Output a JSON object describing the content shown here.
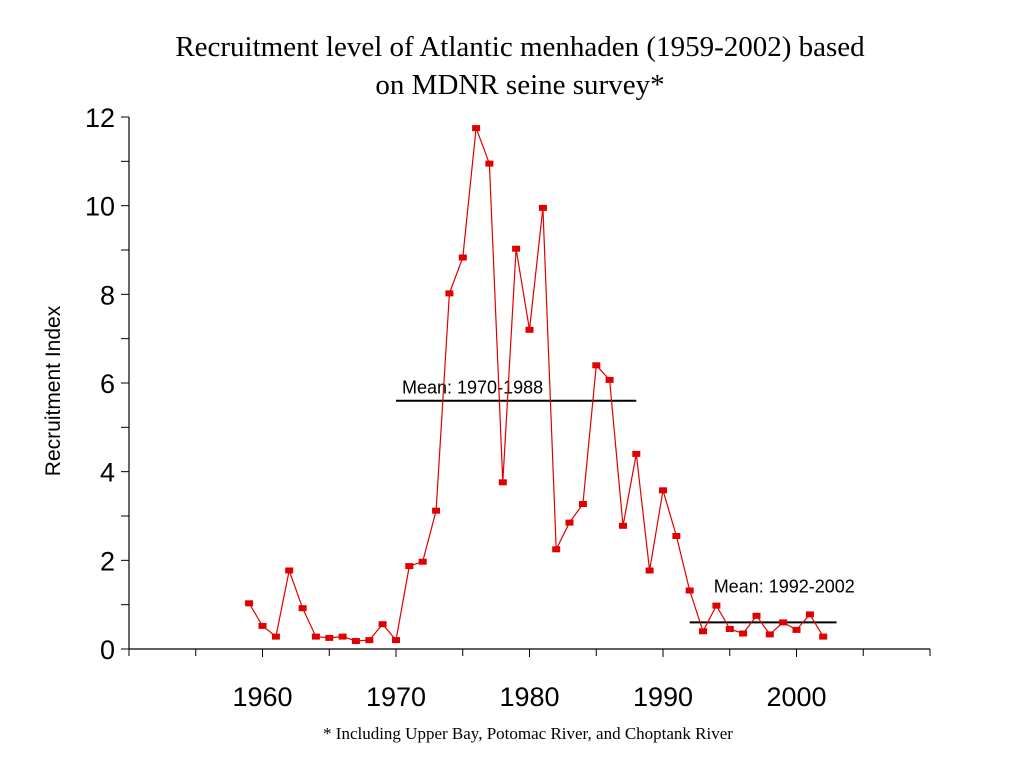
{
  "chart_data": {
    "type": "line",
    "title_line1": "Recruitment level of Atlantic menhaden (1959-2002) based",
    "title_line2": "on MDNR seine survey*",
    "xlabel": "",
    "ylabel": "Recruitment Index",
    "footnote": "* Including Upper Bay, Potomac River, and Choptank River",
    "xlim": [
      1950,
      2010
    ],
    "ylim": [
      0,
      12
    ],
    "x_ticks": [
      1960,
      1970,
      1980,
      1990,
      2000
    ],
    "y_ticks": [
      0,
      2,
      4,
      6,
      8,
      10,
      12
    ],
    "grid": false,
    "series_color": "#e00000",
    "series": [
      {
        "x": [
          1959,
          1960,
          1961,
          1962,
          1963,
          1964,
          1965,
          1966,
          1967,
          1968,
          1969,
          1970,
          1971,
          1972,
          1973,
          1974,
          1975,
          1976,
          1977,
          1978,
          1979,
          1980,
          1981,
          1982,
          1983,
          1984,
          1985,
          1986,
          1987,
          1988,
          1989,
          1990,
          1991,
          1992,
          1993,
          1994,
          1995,
          1996,
          1997,
          1998,
          1999,
          2000,
          2001,
          2002
        ],
        "values": [
          1.03,
          0.52,
          0.28,
          1.77,
          0.92,
          0.28,
          0.25,
          0.28,
          0.18,
          0.2,
          0.56,
          0.2,
          1.87,
          1.97,
          3.12,
          8.02,
          8.83,
          11.75,
          10.95,
          3.76,
          9.03,
          7.2,
          9.95,
          2.25,
          2.85,
          3.27,
          6.4,
          6.07,
          2.78,
          4.4,
          1.77,
          3.58,
          2.55,
          1.32,
          0.4,
          0.98,
          0.45,
          0.35,
          0.75,
          0.33,
          0.6,
          0.43,
          0.78,
          0.28
        ]
      }
    ],
    "annotations": [
      {
        "label": "Mean: 1970-1988",
        "x_start": 1970,
        "x_end": 1988,
        "y": 5.6
      },
      {
        "label": "Mean: 1992-2002",
        "x_start": 1992,
        "x_end": 2003,
        "y": 0.6
      }
    ]
  }
}
